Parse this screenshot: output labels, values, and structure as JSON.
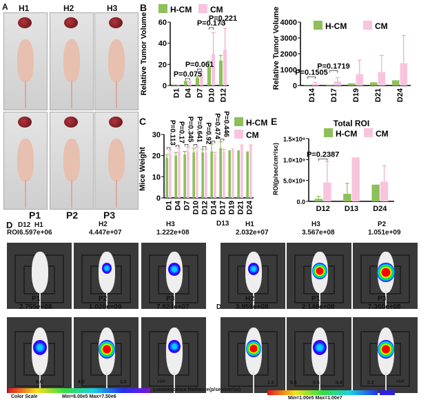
{
  "panels": {
    "A": "A",
    "B": "B",
    "C": "C",
    "D": "D",
    "E": "E"
  },
  "panel_a": {
    "col_labels": [
      "H1",
      "H2",
      "H3"
    ],
    "row_labels": [
      "P1",
      "P2",
      "P3"
    ]
  },
  "panel_d": {
    "roi_label": "ROI",
    "row1": {
      "day_left": "D12",
      "day_right": "D13",
      "items": [
        {
          "mouse": "H1",
          "roi": "6.597e+06"
        },
        {
          "mouse": "H2",
          "roi": "4.447e+07"
        },
        {
          "mouse": "H3",
          "roi": "1.222e+08"
        },
        {
          "mouse": "H1",
          "roi": "2.032e+07"
        },
        {
          "mouse": "H3",
          "roi": "3.567e+08"
        },
        {
          "mouse": "P2",
          "roi": "1.051e+09"
        }
      ]
    },
    "row2": {
      "day_right": "D24",
      "items": [
        {
          "mouse": "P1",
          "roi": "2.755e+08"
        },
        {
          "mouse": "P2",
          "roi": "1.020e+09"
        },
        {
          "mouse": "P3",
          "roi": "7.824e+07"
        },
        {
          "mouse": "H2",
          "roi": "3.959e+08"
        },
        {
          "mouse": "P1",
          "roi": "2.148e+08"
        },
        {
          "mouse": "P3",
          "roi": "7.360e+08"
        }
      ]
    },
    "scale_left": {
      "ticks": [
        "6.0",
        "4.0",
        "2.0"
      ],
      "exp": "×10⁶",
      "caption": "Color Scale",
      "minmax": "Min=8.00e5  Max=7.50e6"
    },
    "scale_title": "Luminescence Radiance(p/sec/cm²/sr)",
    "scale_right": {
      "ticks": [
        "1.0",
        "0.8",
        "0.6",
        "0.4",
        "0.2"
      ],
      "exp": "×10⁷",
      "minmax": "Min=1.00e5  Max=1.00e7"
    }
  },
  "colors": {
    "h_cm": "#8dc05a",
    "cm": "#f8c4dd",
    "cm_err": "#f2a7ca"
  },
  "chart_data": [
    {
      "type": "bar",
      "ylabel": "Relative Tumor Volume",
      "ylim": [
        0,
        60
      ],
      "yticks": [
        0,
        20,
        40,
        60
      ],
      "ytick_labels": [
        "0",
        "20",
        "40",
        "60"
      ],
      "categories": [
        "D1",
        "D4",
        "D7",
        "D10",
        "D12"
      ],
      "series": [
        {
          "name": "H-CM",
          "values": [
            1,
            3.5,
            7.5,
            17.5,
            23.5
          ],
          "errors": [
            0,
            0.5,
            1.5,
            5.5,
            5
          ]
        },
        {
          "name": "CM",
          "values": [
            1,
            2.5,
            10,
            30,
            34
          ],
          "errors": [
            0,
            1,
            3,
            20,
            20
          ]
        }
      ],
      "pvalues": [
        {
          "category": "D4",
          "label": "P=0.075"
        },
        {
          "category": "D7",
          "label": "P=0.061"
        },
        {
          "category": "D10",
          "label": "P=0.173"
        },
        {
          "category": "D12",
          "label": "P=0.221"
        }
      ],
      "legend": "top"
    },
    {
      "type": "bar",
      "ylabel": "Relative Tumor Volume",
      "ylim": [
        0,
        4000
      ],
      "yticks": [
        0,
        1000,
        2000,
        3000,
        4000
      ],
      "ytick_labels": [
        "0",
        "1000",
        "2000",
        "3000",
        "4000"
      ],
      "categories": [
        "D14",
        "D17",
        "D19",
        "D21",
        "D24"
      ],
      "series": [
        {
          "name": "H-CM",
          "values": [
            30,
            50,
            130,
            200,
            330
          ],
          "errors": [
            0,
            0,
            0,
            0,
            0
          ]
        },
        {
          "name": "CM",
          "values": [
            100,
            250,
            720,
            850,
            1400
          ],
          "errors": [
            100,
            250,
            880,
            1050,
            1750
          ]
        }
      ],
      "pvalues": [
        {
          "category": "D14",
          "label": "P=0.1505"
        },
        {
          "category": "D17",
          "label": "P=0.1719"
        }
      ],
      "legend": "top-left"
    },
    {
      "type": "bar",
      "ylabel": "Mice Weight",
      "ylim": [
        0,
        30
      ],
      "yticks": [
        0,
        10,
        20,
        30
      ],
      "ytick_labels": [
        "0",
        "10",
        "20",
        "30"
      ],
      "categories": [
        "D1",
        "D4",
        "D7",
        "D10",
        "D12",
        "D14",
        "D17",
        "D19",
        "D21",
        "D24"
      ],
      "series": [
        {
          "name": "H-CM",
          "values": [
            19,
            20,
            20.5,
            21.5,
            21.5,
            22,
            23.5,
            22.5,
            22.5,
            22
          ],
          "errors": [
            1.5,
            1.5,
            1.5,
            2,
            1.5,
            3.5,
            3,
            0,
            0,
            0
          ]
        },
        {
          "name": "CM",
          "values": [
            21,
            22,
            22,
            22,
            21.5,
            20.5,
            22,
            23.5,
            24.5,
            24.5
          ],
          "errors": [
            1.5,
            1.5,
            2,
            2,
            1.5,
            1,
            1,
            0,
            0.5,
            0.5
          ]
        }
      ],
      "pvalues": [
        {
          "category": "D1",
          "label": "P=0.113"
        },
        {
          "category": "D4",
          "label": "P=0.17"
        },
        {
          "category": "D7",
          "label": "P=0.345"
        },
        {
          "category": "D10",
          "label": "P=0.641"
        },
        {
          "category": "D12",
          "label": "P=0.92"
        },
        {
          "category": "D14",
          "label": "P=0.474"
        },
        {
          "category": "D17",
          "label": "P=0.446"
        }
      ],
      "legend": "top-right"
    },
    {
      "type": "bar",
      "title": "Total ROI",
      "ylabel": "ROI(p/sec/cm²/sc)",
      "ylim": [
        0,
        1500000000
      ],
      "yticks": [
        0,
        500000000,
        1000000000,
        1500000000
      ],
      "ytick_labels": [
        "0.0",
        "5.0×10⁸",
        "1.0×10⁹",
        "1.5×10⁹"
      ],
      "categories": [
        "D12",
        "D13",
        "D24"
      ],
      "series": [
        {
          "name": "H-CM",
          "values": [
            60000000,
            180000000,
            400000000
          ],
          "errors": [
            60000000,
            250000000,
            0
          ]
        },
        {
          "name": "CM",
          "values": [
            450000000,
            1050000000,
            470000000
          ],
          "errors": [
            500000000,
            0,
            380000000
          ]
        }
      ],
      "pvalues": [
        {
          "category": "D12",
          "label": "P=0.2387"
        }
      ],
      "legend": "top"
    }
  ]
}
